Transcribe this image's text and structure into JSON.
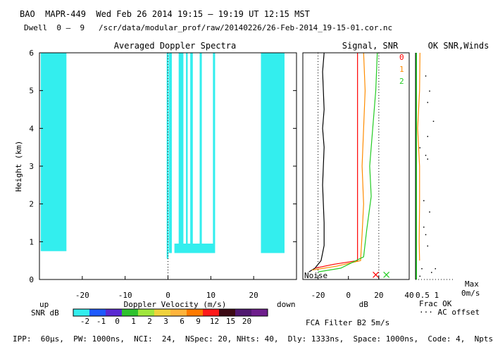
{
  "header": {
    "line1": "BAO  MAPR-449  Wed Feb 26 2014 19:15 – 19:19 UT 12:15 MST",
    "line2": "Dwell  0 –  9   /scr/data/modular_prof/raw/20140226/26-Feb-2014_19-15-01.cor.nc"
  },
  "footer": "IPP:  60μs,  PW: 1000ns,  NCI:  24,  NSpec: 20, NHts: 40,  Dly: 1333ns,  Space: 1000ns,  Code: 4,  Npts: 256",
  "colors": {
    "cyan": "#33eeee",
    "snr_palette": [
      "#33eeee",
      "#1e5aff",
      "#5a2ad2",
      "#2ec22e",
      "#a0e63c",
      "#f0d23c",
      "#ffb43c",
      "#ff7a00",
      "#ff1a1a",
      "#3c0a14",
      "#501870",
      "#6e1e8c"
    ]
  },
  "chart_data": [
    {
      "type": "heatmap",
      "title": "Averaged Doppler Spectra",
      "xlabel": "Doppler Velocity (m/s)",
      "ylabel": "Height (km)",
      "xlim": [
        -30,
        30
      ],
      "ylim": [
        0,
        6
      ],
      "x_ticks": [
        -20,
        -10,
        0,
        10,
        20
      ],
      "y_ticks": [
        0,
        1,
        2,
        3,
        4,
        5,
        6
      ],
      "left_note": "up",
      "right_note": "down",
      "snr_label": "SNR dB",
      "snr_ticks": [
        "-2",
        "-1",
        "0",
        "1",
        "2",
        "3",
        "6",
        "9",
        "12",
        "15",
        "20"
      ],
      "regions": [
        {
          "x0": -29.7,
          "x1": -23.7,
          "y0": 0.75,
          "y1": 6.0
        },
        {
          "x0": -0.3,
          "x1": 0.1,
          "y0": 0.55,
          "y1": 6.0
        },
        {
          "x0": 0.2,
          "x1": 0.9,
          "y0": 0.7,
          "y1": 6.0
        },
        {
          "x0": 2.5,
          "x1": 3.6,
          "y0": 0.8,
          "y1": 6.0
        },
        {
          "x0": 4.2,
          "x1": 4.6,
          "y0": 0.85,
          "y1": 6.0
        },
        {
          "x0": 5.2,
          "x1": 5.8,
          "y0": 0.9,
          "y1": 6.0
        },
        {
          "x0": 7.4,
          "x1": 7.9,
          "y0": 0.9,
          "y1": 6.0
        },
        {
          "x0": 10.5,
          "x1": 11.0,
          "y0": 0.95,
          "y1": 6.0
        },
        {
          "x0": 21.7,
          "x1": 27.2,
          "y0": 0.7,
          "y1": 6.0
        },
        {
          "x0": 1.5,
          "x1": 11.0,
          "y0": 0.7,
          "y1": 0.95
        }
      ],
      "dotted_zero": true
    },
    {
      "type": "line",
      "title": "Signal, SNR",
      "xlabel": "dB",
      "xlim": [
        -30,
        40
      ],
      "ylim": [
        0,
        6
      ],
      "x_ticks": [
        -20,
        0,
        20,
        40
      ],
      "noise_label": "Noise",
      "dotted_verticals": [
        -20,
        20
      ],
      "series": [
        {
          "name": "noise",
          "color": "#000000",
          "x": [
            -26,
            -22,
            -18,
            -16,
            -16,
            -17,
            -16,
            -17,
            -16,
            -17,
            -16
          ],
          "y": [
            0.2,
            0.3,
            0.5,
            0.9,
            1.5,
            2.5,
            3.5,
            4.0,
            4.5,
            5.5,
            6.0
          ]
        },
        {
          "name": "0",
          "color": "#ff0000",
          "x": [
            -22,
            -10,
            6,
            6,
            6,
            6,
            6,
            6,
            6
          ],
          "y": [
            0.3,
            0.4,
            0.5,
            1.0,
            2.0,
            3.0,
            4.0,
            5.0,
            6.0
          ]
        },
        {
          "name": "1",
          "color": "#ff8c00",
          "x": [
            -24,
            -8,
            8,
            9,
            10,
            9,
            10,
            11,
            10
          ],
          "y": [
            0.25,
            0.35,
            0.5,
            1.2,
            2.0,
            3.0,
            4.0,
            5.0,
            6.0
          ]
        },
        {
          "name": "2",
          "color": "#22cc22",
          "x": [
            -20,
            -5,
            10,
            12,
            15,
            14,
            16,
            18,
            19
          ],
          "y": [
            0.2,
            0.3,
            0.6,
            1.3,
            2.2,
            3.0,
            4.0,
            5.0,
            6.0
          ]
        }
      ],
      "legend": [
        {
          "label": "0",
          "color": "#ff0000"
        },
        {
          "label": "1",
          "color": "#ff8c00"
        },
        {
          "label": "2",
          "color": "#22cc22"
        }
      ],
      "markers": [
        {
          "x": 18,
          "y": 0.05,
          "color": "#ff0000"
        },
        {
          "x": 25,
          "y": 0.05,
          "color": "#22cc22"
        }
      ]
    },
    {
      "type": "scatter",
      "title": "OK SNR,Winds",
      "xlim": [
        0,
        1
      ],
      "ylim": [
        0,
        6
      ],
      "x_ticks_label": "0.5  1",
      "frac_ok_label": "Frac OK",
      "ac_offset_label": "··· AC offset",
      "filter_label": "FCA Filter B2   5m/s",
      "max_label": "Max",
      "speed_label": "0m/s",
      "green_x": 0.0,
      "orange": [
        [
          0.05,
          0.5
        ],
        [
          0.04,
          1.0
        ],
        [
          0.05,
          2.0
        ],
        [
          0.05,
          3.0
        ],
        [
          0.0,
          4.0
        ],
        [
          0.05,
          5.0
        ],
        [
          0.06,
          6.0
        ]
      ],
      "dots": [
        [
          0.35,
          5.0
        ],
        [
          0.3,
          4.7
        ],
        [
          0.45,
          4.2
        ],
        [
          0.3,
          3.8
        ],
        [
          0.1,
          3.5
        ],
        [
          0.25,
          3.3
        ],
        [
          0.3,
          3.2
        ],
        [
          0.2,
          2.1
        ],
        [
          0.35,
          1.8
        ],
        [
          0.2,
          1.4
        ],
        [
          0.25,
          1.2
        ],
        [
          0.3,
          0.9
        ],
        [
          0.15,
          0.3
        ],
        [
          0.4,
          0.2
        ],
        [
          0.5,
          0.3
        ],
        [
          0.1,
          0.1
        ],
        [
          0.25,
          5.4
        ]
      ]
    }
  ]
}
